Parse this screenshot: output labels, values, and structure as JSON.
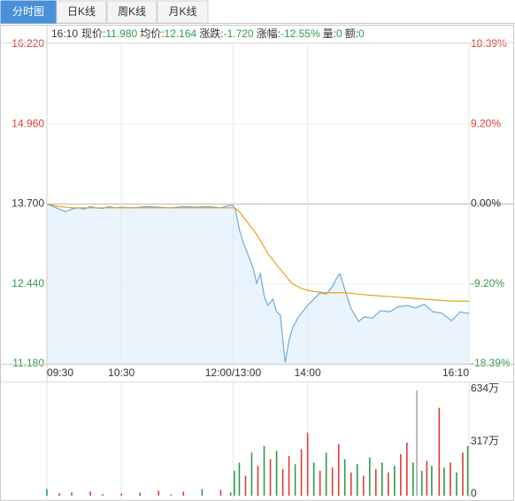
{
  "tabs": [
    "分时图",
    "日K线",
    "周K线",
    "月K线"
  ],
  "quote": {
    "time": "16:10",
    "items": [
      {
        "label": "现价:",
        "value": "11.980"
      },
      {
        "label": "均价:",
        "value": "12.164"
      },
      {
        "label": "涨跌:",
        "value": "-1.720"
      },
      {
        "label": "涨幅:",
        "value": "-12.55%"
      },
      {
        "label": "量:",
        "value": "0"
      },
      {
        "label": "额:",
        "value": "0"
      }
    ]
  },
  "chart_data": [
    {
      "type": "line",
      "xlim": [
        0,
        340
      ],
      "xticks": [
        {
          "value": 0,
          "label": "09:30"
        },
        {
          "value": 60,
          "label": "10:30"
        },
        {
          "value": 150,
          "label": "12:00/13:00"
        },
        {
          "value": 210,
          "label": "14:00"
        },
        {
          "value": 340,
          "label": "16:10"
        }
      ],
      "ylim": [
        11.18,
        16.22
      ],
      "yticks": [
        {
          "value": 16.22,
          "label": "16.220"
        },
        {
          "value": 14.96,
          "label": "14.960"
        },
        {
          "value": 13.7,
          "label": "13.700"
        },
        {
          "value": 12.44,
          "label": "12.440"
        },
        {
          "value": 11.18,
          "label": "11.180"
        }
      ],
      "y2lim": [
        -18.39,
        18.39
      ],
      "y2ticks": [
        {
          "value": 18.39,
          "label": "18.39%"
        },
        {
          "value": 9.2,
          "label": "9.20%"
        },
        {
          "value": 0,
          "label": "0.00%"
        },
        {
          "value": -9.2,
          "label": "-9.20%"
        },
        {
          "value": -18.39,
          "label": "-18.39%"
        }
      ],
      "up_color": "#e03c31",
      "down_color": "#2e9a4a",
      "flat_color": "#333333",
      "x": [
        0,
        5,
        10,
        15,
        20,
        25,
        30,
        35,
        40,
        45,
        50,
        55,
        60,
        70,
        80,
        90,
        100,
        110,
        120,
        130,
        140,
        145,
        150,
        152,
        155,
        158,
        162,
        166,
        169,
        172,
        175,
        178,
        182,
        185,
        188,
        192,
        195,
        198,
        202,
        205,
        210,
        215,
        220,
        225,
        230,
        233,
        236,
        240,
        245,
        251,
        256,
        262,
        269,
        276,
        283,
        290,
        297,
        304,
        311,
        318,
        326,
        333,
        337,
        340
      ],
      "series": [
        {
          "color": "#6fa8dc",
          "fill": "#eaf4fc",
          "values": [
            13.7,
            13.66,
            13.62,
            13.58,
            13.62,
            13.64,
            13.62,
            13.66,
            13.64,
            13.63,
            13.66,
            13.64,
            13.65,
            13.64,
            13.66,
            13.65,
            13.64,
            13.66,
            13.65,
            13.66,
            13.64,
            13.67,
            13.68,
            13.6,
            13.3,
            13.1,
            12.9,
            12.7,
            12.45,
            12.6,
            12.25,
            12.1,
            12.2,
            12.0,
            11.95,
            11.2,
            11.55,
            11.75,
            11.9,
            11.98,
            12.1,
            12.2,
            12.3,
            12.28,
            12.4,
            12.52,
            12.6,
            12.35,
            12.05,
            11.85,
            11.92,
            11.9,
            12.02,
            12.0,
            12.08,
            12.1,
            12.06,
            12.12,
            12.0,
            11.98,
            11.86,
            12.0,
            11.98,
            11.98
          ]
        },
        {
          "color": "#e8a317",
          "values": [
            13.7,
            13.68,
            13.66,
            13.65,
            13.64,
            13.64,
            13.64,
            13.64,
            13.64,
            13.64,
            13.64,
            13.64,
            13.64,
            13.64,
            13.64,
            13.64,
            13.64,
            13.64,
            13.64,
            13.64,
            13.64,
            13.64,
            13.64,
            13.63,
            13.58,
            13.5,
            13.4,
            13.3,
            13.22,
            13.12,
            13.02,
            12.92,
            12.82,
            12.74,
            12.67,
            12.58,
            12.5,
            12.44,
            12.4,
            12.37,
            12.34,
            12.32,
            12.31,
            12.3,
            12.3,
            12.3,
            12.3,
            12.3,
            12.29,
            12.28,
            12.27,
            12.26,
            12.25,
            12.24,
            12.23,
            12.22,
            12.21,
            12.2,
            12.19,
            12.18,
            12.17,
            12.17,
            12.17,
            12.164
          ]
        }
      ]
    },
    {
      "type": "bar",
      "xlim": [
        0,
        340
      ],
      "ylim": [
        0,
        667
      ],
      "yticks": [
        {
          "value": 634,
          "label": "634万"
        },
        {
          "value": 317,
          "label": "317万"
        },
        0
      ],
      "x": [
        0,
        10,
        20,
        35,
        45,
        60,
        75,
        90,
        100,
        110,
        125,
        140,
        148,
        151,
        155,
        160,
        165,
        170,
        175,
        180,
        185,
        190,
        195,
        200,
        205,
        210,
        215,
        220,
        225,
        230,
        235,
        240,
        245,
        250,
        255,
        260,
        265,
        270,
        275,
        280,
        285,
        290,
        295,
        298,
        302,
        306,
        310,
        316,
        320,
        325,
        330,
        335,
        339
      ],
      "values": [
        40,
        15,
        20,
        25,
        10,
        12,
        18,
        30,
        8,
        25,
        40,
        35,
        20,
        150,
        200,
        120,
        260,
        180,
        300,
        220,
        270,
        160,
        240,
        190,
        280,
        380,
        200,
        150,
        260,
        170,
        310,
        220,
        140,
        190,
        120,
        230,
        160,
        200,
        140,
        180,
        250,
        320,
        200,
        634,
        150,
        210,
        180,
        530,
        170,
        200,
        140,
        260,
        300
      ],
      "colors": [
        "#2e9a4a",
        "#e03c31",
        "#2e9a4a",
        "#e03c31",
        "#2e9a4a",
        "#e03c31",
        "#2e9a4a",
        "#e03c31",
        "#2e9a4a",
        "#e03c31",
        "#2e9a4a",
        "#e03c31",
        "#2e9a4a",
        "#2e9a4a",
        "#2e9a4a",
        "#e03c31",
        "#2e9a4a",
        "#e03c31",
        "#2e9a4a",
        "#e03c31",
        "#2e9a4a",
        "#e03c31",
        "#e03c31",
        "#2e9a4a",
        "#e03c31",
        "#e03c31",
        "#2e9a4a",
        "#e03c31",
        "#2e9a4a",
        "#e03c31",
        "#e03c31",
        "#2e9a4a",
        "#e03c31",
        "#2e9a4a",
        "#e03c31",
        "#2e9a4a",
        "#e03c31",
        "#2e9a4a",
        "#e03c31",
        "#2e9a4a",
        "#e03c31",
        "#e03c31",
        "#2e9a4a",
        "#aaaaaa",
        "#2e9a4a",
        "#e03c31",
        "#2e9a4a",
        "#e03c31",
        "#2e9a4a",
        "#e03c31",
        "#2e9a4a",
        "#e03c31",
        "#2e9a4a"
      ]
    }
  ]
}
